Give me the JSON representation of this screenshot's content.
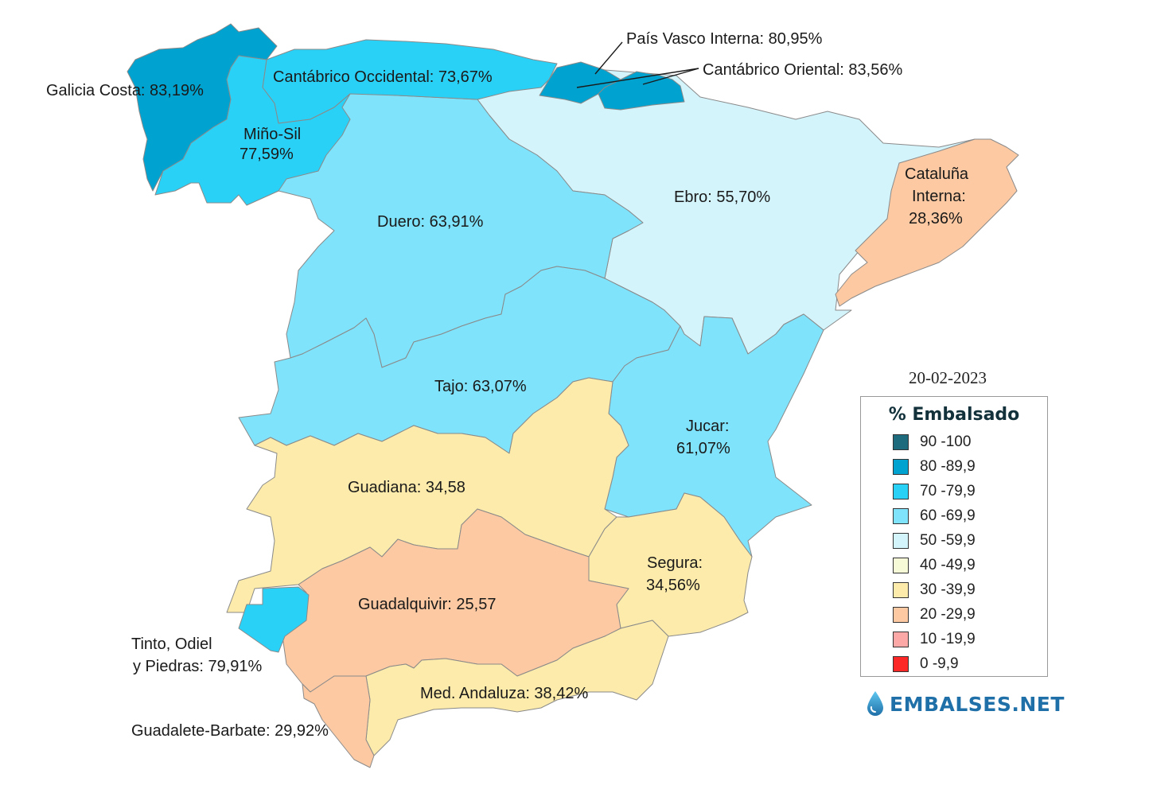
{
  "date": "20-02-2023",
  "legend": {
    "title": "% Embalsado",
    "items": [
      {
        "range": "90 -100",
        "color": "#1e6b7d"
      },
      {
        "range": "80 -89,9",
        "color": "#00a2cf"
      },
      {
        "range": "70 -79,9",
        "color": "#2ad1f7"
      },
      {
        "range": "60 -69,9",
        "color": "#7fe3fb"
      },
      {
        "range": "50 -59,9",
        "color": "#d4f4fc"
      },
      {
        "range": "40 -49,9",
        "color": "#f6fad6"
      },
      {
        "range": "30 -39,9",
        "color": "#fcebaa"
      },
      {
        "range": "20 -29,9",
        "color": "#fcc9a2"
      },
      {
        "range": "10 -19,9",
        "color": "#fca8a6"
      },
      {
        "range": "0 -9,9",
        "color": "#fc2828"
      }
    ]
  },
  "basins": {
    "galicia_costa": {
      "label": "Galicia Costa: 83,19%",
      "color": "#00a2cf"
    },
    "mino_sil": {
      "label1": "Miño-Sil",
      "label2": "77,59%",
      "color": "#2ad1f7"
    },
    "cantabrico_occidental": {
      "label": "Cantábrico Occidental: 73,67%",
      "color": "#2ad1f7"
    },
    "pais_vasco_interna": {
      "label": "País Vasco Interna: 80,95%",
      "color": "#00a2cf"
    },
    "cantabrico_oriental": {
      "label": "Cantábrico Oriental: 83,56%",
      "color": "#00a2cf"
    },
    "duero": {
      "label": "Duero: 63,91%",
      "color": "#7fe3fb"
    },
    "ebro": {
      "label": "Ebro: 55,70%",
      "color": "#d4f4fc"
    },
    "cataluna_interna": {
      "label1": "Cataluña",
      "label2": "Interna:",
      "label3": "28,36%",
      "color": "#fcc9a2"
    },
    "tajo": {
      "label": "Tajo: 63,07%",
      "color": "#7fe3fb"
    },
    "jucar": {
      "label1": "Jucar:",
      "label2": "61,07%",
      "color": "#7fe3fb"
    },
    "guadiana": {
      "label": "Guadiana: 34,58",
      "color": "#fcebaa"
    },
    "segura": {
      "label1": "Segura:",
      "label2": "34,56%",
      "color": "#fcebaa"
    },
    "guadalquivir": {
      "label": "Guadalquivir: 25,57",
      "color": "#fcc9a2"
    },
    "tinto_odiel": {
      "label1": "Tinto, Odiel",
      "label2": "y Piedras: 79,91%",
      "color": "#2ad1f7"
    },
    "med_andaluza": {
      "label": "Med. Andaluza: 38,42%",
      "color": "#fcebaa"
    },
    "guadalete_barbate": {
      "label": "Guadalete-Barbate: 29,92%",
      "color": "#fcc9a2"
    }
  },
  "brand": {
    "name": "EMBALSES.NET",
    "icon": "water-drop-icon"
  }
}
